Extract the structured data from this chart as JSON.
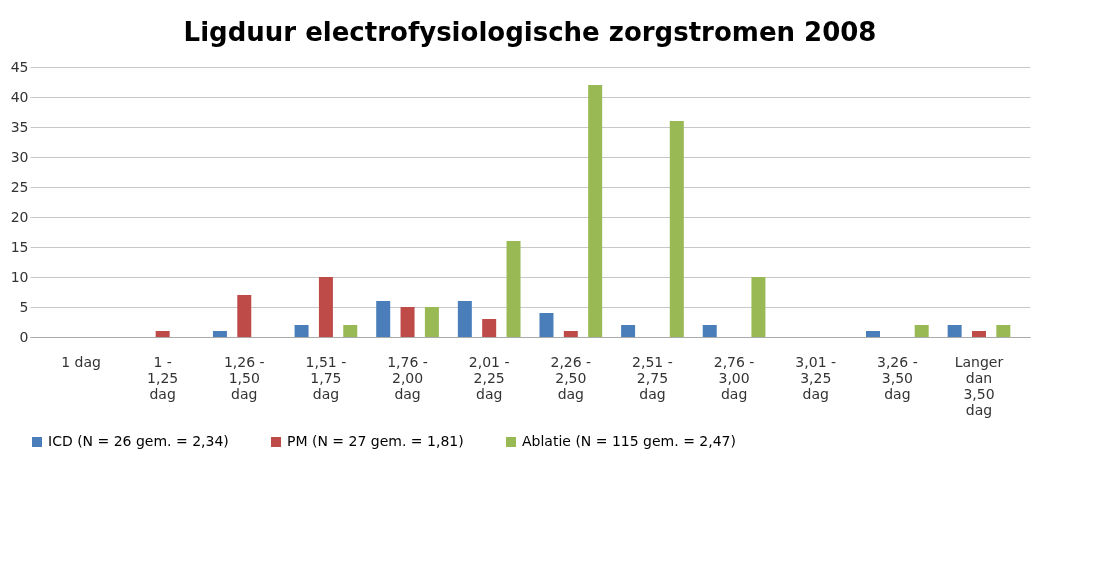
{
  "chart_data": {
    "type": "bar",
    "title": "Ligduur electrofysiologische zorgstromen 2008",
    "categories": [
      "1 dag",
      "1 - 1,25 dag",
      "1,26 - 1,50 dag",
      "1,51 - 1,75 dag",
      "1,76 - 2,00 dag",
      "2,01 - 2,25 dag",
      "2,26 - 2,50 dag",
      "2,51 - 2,75 dag",
      "2,76 - 3,00 dag",
      "3,01 - 3,25 dag",
      "3,26 - 3,50 dag",
      "Langer dan 3,50 dag"
    ],
    "series": [
      {
        "name": "ICD (N = 26 gem. = 2,34)",
        "color": "#4a7ebb",
        "values": [
          0,
          0,
          1,
          2,
          6,
          6,
          4,
          2,
          2,
          0,
          1,
          2
        ]
      },
      {
        "name": "PM (N = 27 gem. = 1,81)",
        "color": "#be4b48",
        "values": [
          0,
          1,
          7,
          10,
          5,
          3,
          1,
          0,
          0,
          0,
          0,
          1
        ]
      },
      {
        "name": "Ablatie (N = 115 gem. = 2,47)",
        "color": "#98b954",
        "values": [
          0,
          0,
          0,
          2,
          5,
          16,
          42,
          36,
          10,
          0,
          2,
          2
        ]
      }
    ],
    "ylim": [
      0,
      45
    ],
    "yticks": [
      0,
      5,
      10,
      15,
      20,
      25,
      30,
      35,
      40,
      45
    ],
    "grid": "y",
    "legend": "bottom"
  }
}
